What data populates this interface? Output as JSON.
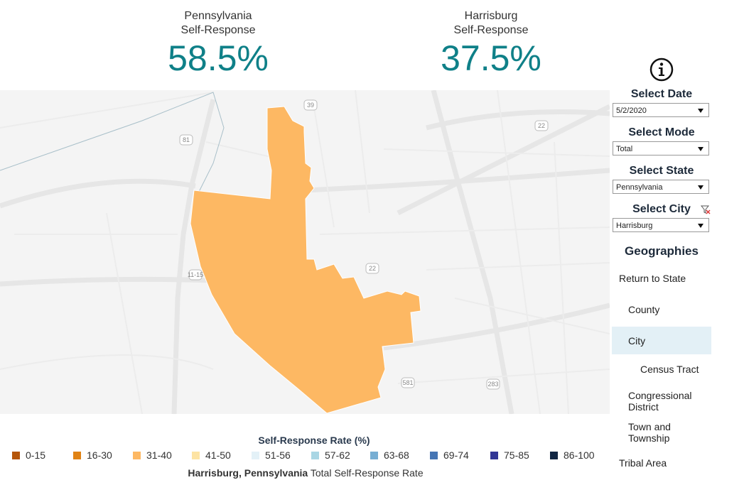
{
  "kpis": [
    {
      "label": [
        "Pennsylvania",
        "Self-Response"
      ],
      "value": "58.5%"
    },
    {
      "label": [
        "Harrisburg",
        "Self-Response"
      ],
      "value": "37.5%"
    }
  ],
  "filters": [
    {
      "label": "Select Date",
      "value": "5/2/2020"
    },
    {
      "label": "Select Mode",
      "value": "Total"
    },
    {
      "label": "Select State",
      "value": "Pennsylvania"
    },
    {
      "label": "Select City",
      "value": "Harrisburg"
    }
  ],
  "map_labels": [
    "39",
    "81",
    "22",
    "11-15",
    "22",
    "581",
    "283"
  ],
  "geographies": {
    "title": "Geographies",
    "selected": "City",
    "items": [
      "Return to State",
      "County",
      "City",
      "Census Tract",
      "Congressional District",
      "Town and Township",
      "Tribal Area"
    ]
  },
  "legend": {
    "title": "Self-Response Rate (%)",
    "items": [
      {
        "label": "0-15",
        "color": "#b5560b"
      },
      {
        "label": "16-30",
        "color": "#e08214"
      },
      {
        "label": "31-40",
        "color": "#fdb863"
      },
      {
        "label": "41-50",
        "color": "#fde3a3"
      },
      {
        "label": "51-56",
        "color": "#e3f1f7"
      },
      {
        "label": "57-62",
        "color": "#a9d6e4"
      },
      {
        "label": "63-68",
        "color": "#77aed3"
      },
      {
        "label": "69-74",
        "color": "#4575b4"
      },
      {
        "label": "75-85",
        "color": "#313695"
      },
      {
        "label": "86-100",
        "color": "#102542"
      }
    ]
  },
  "footer": {
    "place": "Harrisburg, Pennsylvania",
    "text": "Total Self-Response Rate"
  }
}
